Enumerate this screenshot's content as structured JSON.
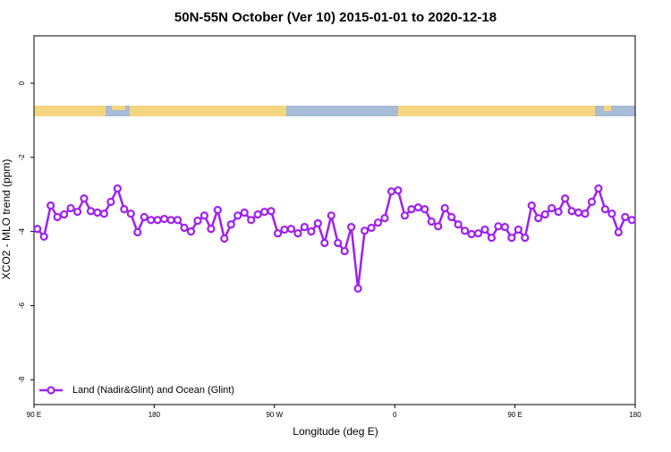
{
  "chart_data": {
    "type": "line",
    "title": "50N-55N October (Ver 10)   2015-01-01 to 2020-12-18",
    "x_label": "Longitude (deg E)",
    "y_label": "XCO2 - MLO trend (ppm)",
    "x": [
      92.5,
      97.5,
      102.5,
      107.5,
      112.5,
      117.5,
      122.5,
      127.5,
      132.5,
      137.5,
      142.5,
      147.5,
      152.5,
      157.5,
      162.5,
      167.5,
      172.5,
      177.5,
      182.5,
      187.5,
      192.5,
      197.5,
      202.5,
      207.5,
      212.5,
      217.5,
      222.5,
      227.5,
      232.5,
      237.5,
      242.5,
      247.5,
      252.5,
      257.5,
      262.5,
      267.5,
      272.5,
      277.5,
      282.5,
      287.5,
      292.5,
      297.5,
      302.5,
      307.5,
      312.5,
      317.5,
      322.5,
      327.5,
      332.5,
      337.5,
      342.5,
      347.5,
      352.5,
      357.5,
      362.5,
      367.5,
      372.5,
      377.5,
      382.5,
      387.5,
      392.5,
      397.5,
      402.5,
      407.5,
      412.5,
      417.5,
      422.5,
      427.5,
      432.5,
      437.5,
      442.5,
      447.5,
      452.5,
      457.5,
      462.5,
      467.5,
      472.5,
      477.5,
      482.5,
      487.5,
      492.5,
      497.5,
      502.5,
      507.5,
      512.5,
      517.5,
      522.5,
      527.5,
      532.5,
      537.5
    ],
    "series": [
      {
        "name": "Land (Nadir&Glint) and Ocean (Glint)",
        "color": "#a020f0",
        "values": [
          -3.93,
          -4.14,
          -3.3,
          -3.61,
          -3.54,
          -3.37,
          -3.47,
          -3.11,
          -3.45,
          -3.49,
          -3.52,
          -3.2,
          -2.84,
          -3.4,
          -3.52,
          -4.02,
          -3.61,
          -3.69,
          -3.69,
          -3.66,
          -3.69,
          -3.69,
          -3.9,
          -4.0,
          -3.71,
          -3.57,
          -3.93,
          -3.42,
          -4.19,
          -3.81,
          -3.57,
          -3.49,
          -3.69,
          -3.54,
          -3.47,
          -3.45,
          -4.05,
          -3.95,
          -3.93,
          -4.05,
          -3.88,
          -4.0,
          -3.78,
          -4.31,
          -3.57,
          -4.31,
          -4.53,
          -3.88,
          -5.54,
          -3.98,
          -3.9,
          -3.76,
          -3.64,
          -2.92,
          -2.89,
          -3.57,
          -3.4,
          -3.35,
          -3.4,
          -3.73,
          -3.86,
          -3.37,
          -3.61,
          -3.81,
          -3.98,
          -4.07,
          -4.05,
          -3.95,
          -4.17,
          -3.86,
          -3.88,
          -4.17,
          -3.95,
          -4.17,
          -3.3,
          -3.64,
          -3.54,
          -3.37,
          -3.47,
          -3.11,
          -3.45,
          -3.49,
          -3.52,
          -3.2,
          -2.84,
          -3.4,
          -3.52,
          -4.02,
          -3.61,
          -3.69
        ]
      }
    ],
    "xlim": [
      90,
      540
    ],
    "xticks": [
      {
        "value": 90,
        "label": "90 E"
      },
      180,
      {
        "value": 270,
        "label": "90 W"
      },
      {
        "value": 360,
        "label": "0"
      },
      {
        "value": 450,
        "label": "90 E"
      },
      {
        "value": 540,
        "label": "180"
      }
    ],
    "ylim": [
      -8.67,
      1.28
    ],
    "yticks": [
      0,
      -2,
      -4,
      -6,
      -8
    ],
    "legend": "bottom left"
  }
}
